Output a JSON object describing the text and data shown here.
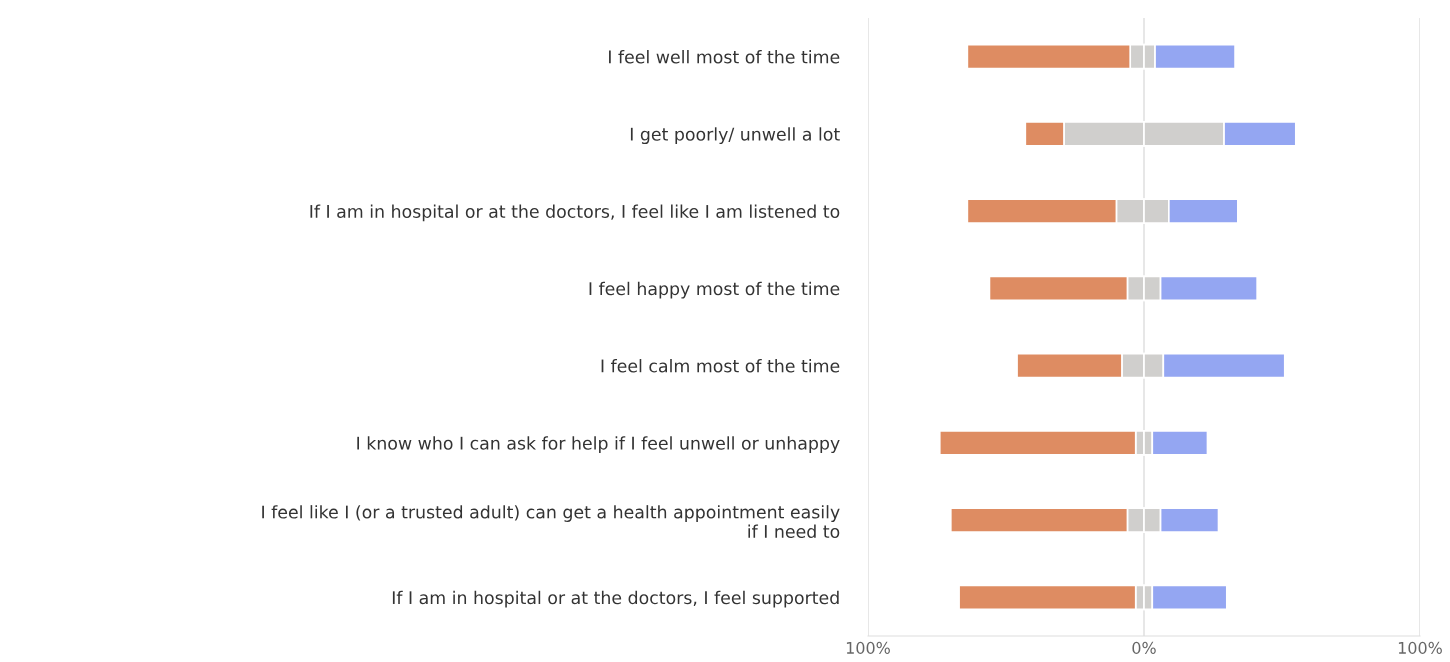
{
  "chart_data": {
    "type": "bar",
    "orientation": "horizontal",
    "stacked": true,
    "categories": [
      "I feel well most of the time",
      "I get poorly/ unwell a lot",
      "If I am in hospital or at the doctors, I feel like I am listened to",
      "I feel happy most of the time",
      "I feel calm most of the time",
      "I know who I can ask for help if I feel unwell or unhappy",
      "I feel like I (or a trusted adult) can get a health appointment easily\nif I need to",
      "If I am in hospital or at the doctors, I feel supported"
    ],
    "series": [
      {
        "color": "#d0cfcd",
        "values": [
          -5,
          -29,
          -10,
          -6,
          -8,
          -3,
          -6,
          -3
        ]
      },
      {
        "color": "#de8c62",
        "values": [
          -59,
          -14,
          -54,
          -50,
          -38,
          -71,
          -64,
          -64
        ]
      },
      {
        "color": "#d0cfcd",
        "values": [
          4,
          29,
          9,
          6,
          7,
          3,
          6,
          3
        ]
      },
      {
        "color": "#94a6f2",
        "values": [
          29,
          26,
          25,
          35,
          44,
          20,
          21,
          27
        ]
      }
    ],
    "xlim": [
      -100,
      100
    ],
    "xticks": [
      {
        "value": -100,
        "label": "100%"
      },
      {
        "value": 0,
        "label": "0%"
      },
      {
        "value": 100,
        "label": "100%"
      }
    ],
    "grid": "x"
  }
}
